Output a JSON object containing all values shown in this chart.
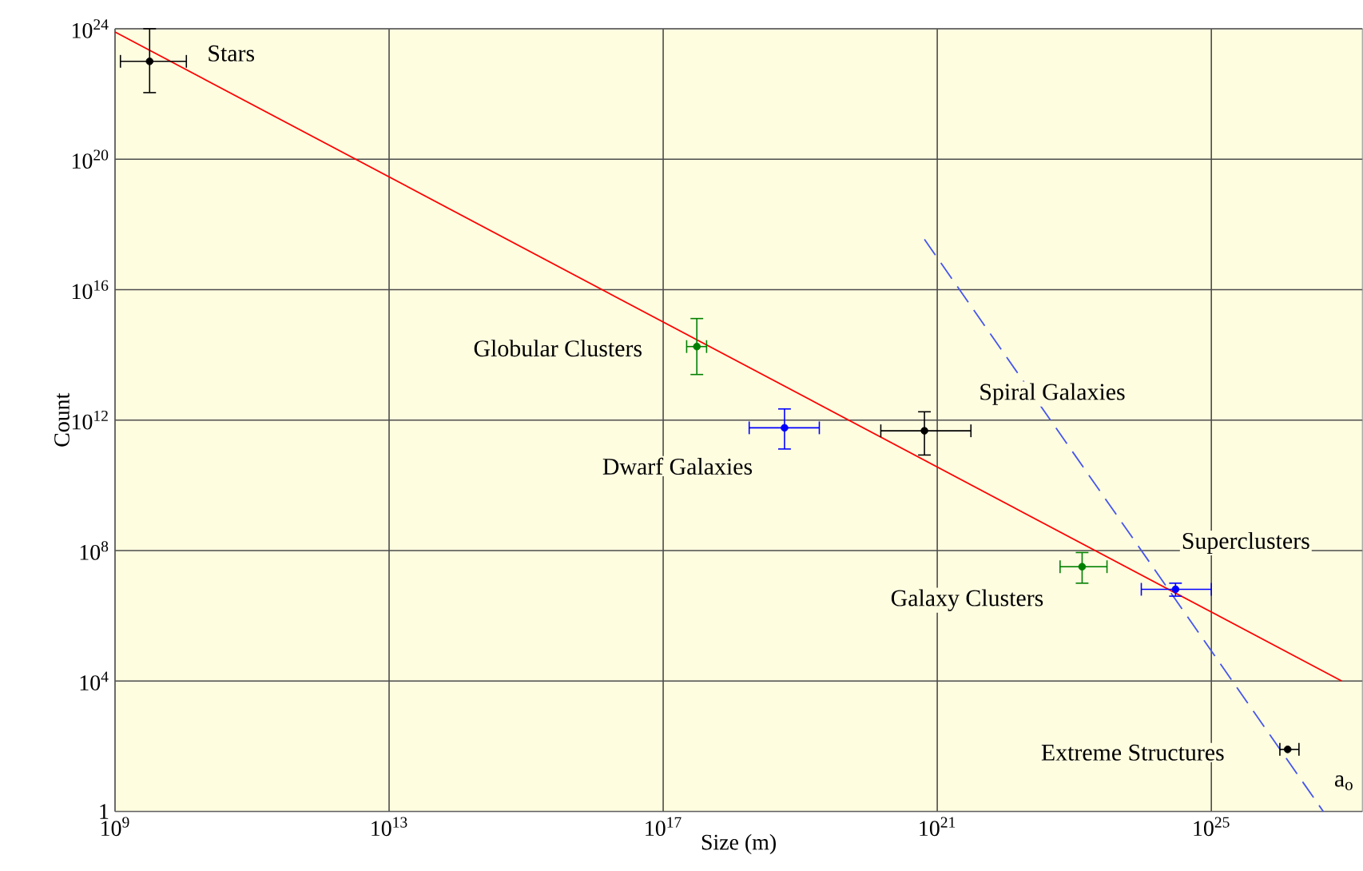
{
  "chart_data": {
    "type": "scatter",
    "xlabel": "Size (m)",
    "ylabel": "Count",
    "log": "xy",
    "grid": true,
    "xlim": [
      1000000000.0,
      1.6e+27
    ],
    "ylim": [
      1,
      1e+24
    ],
    "xticks": [
      {
        "value": 1000000000.0,
        "label": "10$^{9}$"
      },
      {
        "value": 10000000000000.0,
        "label": "10$^{13}$"
      },
      {
        "value": 1e+17,
        "label": "10$^{17}$"
      },
      {
        "value": 1e+21,
        "label": "10$^{21}$"
      },
      {
        "value": 1e+25,
        "label": "10$^{25}$"
      }
    ],
    "yticks": [
      1,
      {
        "value": 10000.0,
        "label": "10$^{4}$"
      },
      {
        "value": 100000000.0,
        "label": "10$^{8}$"
      },
      {
        "value": 1000000000000.0,
        "label": "10$^{12}$"
      },
      {
        "value": 1e+16,
        "label": "10$^{16}$"
      },
      {
        "value": 1e+20,
        "label": "10$^{20}$"
      },
      {
        "value": 1e+24,
        "label": "10$^{24}$"
      }
    ],
    "series": [
      {
        "type": "line",
        "color": "#ff0000",
        "line_style": "solid",
        "marker": "none",
        "x": [
          1000000000.0,
          8e+26
        ],
        "values": [
          8e+23,
          10000.0
        ]
      },
      {
        "type": "line",
        "color": "#4455ee",
        "line_style": "dashed",
        "marker": "none",
        "x": [
          6.5e+20,
          4.3e+26
        ],
        "values": [
          3.5e+17,
          1
        ]
      },
      {
        "color": "#000000",
        "marker": "circle",
        "x": [
          3200000000.0
        ],
        "values": [
          1e+23
        ],
        "xerrors": [
          [
            1200000000.0,
            11000000000.0
          ]
        ],
        "errors": [
          [
            1.1e+22,
            1e+24
          ]
        ]
      },
      {
        "color": "#008000",
        "marker": "circle",
        "x": [
          3.1e+17
        ],
        "values": [
          180000000000000.0
        ],
        "xerrors": [
          [
            2.2e+17,
            4.3e+17
          ]
        ],
        "errors": [
          [
            25000000000000.0,
            1300000000000000.0
          ]
        ]
      },
      {
        "color": "#0000ff",
        "marker": "circle",
        "x": [
          5.9e+18
        ],
        "values": [
          580000000000.0
        ],
        "xerrors": [
          [
            1.8e+18,
            1.9e+19
          ]
        ],
        "errors": [
          [
            130000000000.0,
            2200000000000.0
          ]
        ]
      },
      {
        "color": "#000000",
        "marker": "circle",
        "x": [
          6.5e+20
        ],
        "values": [
          470000000000.0
        ],
        "xerrors": [
          [
            1.5e+20,
            3.1e+21
          ]
        ],
        "errors": [
          [
            85000000000.0,
            1800000000000.0
          ]
        ]
      },
      {
        "color": "#008000",
        "marker": "circle",
        "x": [
          1.3e+23
        ],
        "values": [
          32000000.0
        ],
        "xerrors": [
          [
            6.2e+22,
            3e+23
          ]
        ],
        "errors": [
          [
            10000000.0,
            87000000.0
          ]
        ]
      },
      {
        "color": "#0000ff",
        "marker": "circle",
        "x": [
          3e+24
        ],
        "values": [
          6500000.0
        ],
        "xerrors": [
          [
            9.5e+23,
            1e+25
          ]
        ],
        "errors": [
          [
            4000000.0,
            10000000.0
          ]
        ]
      },
      {
        "color": "#000000",
        "marker": "circle",
        "x": [
          1.3e+26
        ],
        "values": [
          80
        ],
        "xerrors": [
          [
            1e+26,
            1.9e+26
          ]
        ],
        "errors": [
          null
        ]
      }
    ],
    "annotations": [
      {
        "text": "Stars",
        "x": 3200000000.0,
        "y": 1e+23
      },
      {
        "text": "Globular Clusters",
        "x": 3.1e+17,
        "y": 180000000000000.0
      },
      {
        "text": "Dwarf Galaxies",
        "x": 5.9e+18,
        "y": 580000000000.0
      },
      {
        "text": "Spiral Galaxies",
        "x": 6.5e+20,
        "y": 470000000000.0
      },
      {
        "text": "Galaxy Clusters",
        "x": 1.3e+23,
        "y": 32000000.0
      },
      {
        "text": "Superclusters",
        "x": 3e+24,
        "y": 6500000.0
      },
      {
        "text": "Extreme Structures",
        "x": 1.3e+26,
        "y": 80
      },
      {
        "text": "a$_{o}$",
        "x": 4.3e+26,
        "y": 1
      }
    ]
  }
}
